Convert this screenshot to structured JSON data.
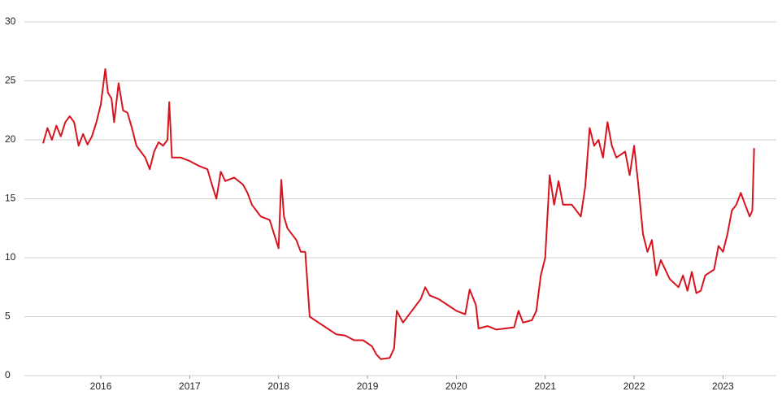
{
  "chart_data": {
    "type": "line",
    "x": [
      2015.35,
      2015.4,
      2015.45,
      2015.5,
      2015.55,
      2015.6,
      2015.65,
      2015.7,
      2015.75,
      2015.8,
      2015.85,
      2015.9,
      2015.95,
      2016.0,
      2016.05,
      2016.08,
      2016.12,
      2016.15,
      2016.2,
      2016.25,
      2016.3,
      2016.35,
      2016.4,
      2016.45,
      2016.5,
      2016.55,
      2016.6,
      2016.65,
      2016.7,
      2016.75,
      2016.77,
      2016.8,
      2016.9,
      2017.0,
      2017.1,
      2017.2,
      2017.25,
      2017.3,
      2017.35,
      2017.4,
      2017.5,
      2017.6,
      2017.65,
      2017.7,
      2017.8,
      2017.9,
      2017.95,
      2018.0,
      2018.03,
      2018.06,
      2018.1,
      2018.2,
      2018.25,
      2018.3,
      2018.35,
      2018.45,
      2018.55,
      2018.65,
      2018.75,
      2018.85,
      2018.95,
      2019.05,
      2019.1,
      2019.15,
      2019.25,
      2019.3,
      2019.33,
      2019.4,
      2019.5,
      2019.6,
      2019.65,
      2019.7,
      2019.8,
      2019.9,
      2020.0,
      2020.1,
      2020.15,
      2020.22,
      2020.25,
      2020.35,
      2020.45,
      2020.55,
      2020.65,
      2020.7,
      2020.75,
      2020.85,
      2020.9,
      2020.95,
      2021.0,
      2021.05,
      2021.1,
      2021.15,
      2021.2,
      2021.3,
      2021.4,
      2021.45,
      2021.5,
      2021.55,
      2021.6,
      2021.65,
      2021.7,
      2021.75,
      2021.8,
      2021.9,
      2021.95,
      2022.0,
      2022.05,
      2022.1,
      2022.15,
      2022.2,
      2022.25,
      2022.3,
      2022.4,
      2022.5,
      2022.55,
      2022.6,
      2022.65,
      2022.7,
      2022.75,
      2022.8,
      2022.9,
      2022.95,
      2023.0,
      2023.05,
      2023.1,
      2023.15,
      2023.2,
      2023.25,
      2023.3,
      2023.33,
      2023.35
    ],
    "series": [
      {
        "color": "#d7141e",
        "values": [
          19.7,
          21,
          20,
          21.2,
          20.3,
          21.5,
          22,
          21.5,
          19.5,
          20.5,
          19.6,
          20.3,
          21.5,
          23,
          26,
          24,
          23.5,
          21.5,
          24.8,
          22.5,
          22.3,
          21,
          19.5,
          19,
          18.5,
          17.5,
          19,
          19.8,
          19.5,
          20,
          23.2,
          18.5,
          18.5,
          18.2,
          17.8,
          17.5,
          16.2,
          15,
          17.3,
          16.5,
          16.8,
          16.2,
          15.5,
          14.5,
          13.5,
          13.2,
          12,
          10.8,
          16.6,
          13.5,
          12.5,
          11.5,
          10.5,
          10.5,
          5,
          4.5,
          4,
          3.5,
          3.4,
          3,
          3,
          2.5,
          1.8,
          1.4,
          1.5,
          2.3,
          5.5,
          4.5,
          5.5,
          6.5,
          7.5,
          6.8,
          6.5,
          6,
          5.5,
          5.2,
          7.3,
          6,
          4,
          4.2,
          3.9,
          4,
          4.1,
          5.5,
          4.5,
          4.7,
          5.5,
          8.5,
          10,
          17,
          14.5,
          16.5,
          14.5,
          14.5,
          13.5,
          16,
          21,
          19.5,
          20,
          18.5,
          21.5,
          19.5,
          18.5,
          19,
          17,
          19.5,
          16,
          12,
          10.5,
          11.5,
          8.5,
          9.8,
          8.2,
          7.5,
          8.5,
          7.2,
          8.8,
          7,
          7.2,
          8.5,
          9,
          11,
          10.5,
          12,
          14,
          14.5,
          15.5,
          14.5,
          13.5,
          14,
          19.3
        ]
      }
    ],
    "xlim": [
      2015.14,
      2023.6
    ],
    "xticks": [
      2016,
      2017,
      2018,
      2019,
      2020,
      2021,
      2022,
      2023
    ],
    "ylim": [
      0,
      30
    ],
    "yticks": [
      0,
      5,
      10,
      15,
      20,
      25,
      30
    ],
    "grid": true
  }
}
